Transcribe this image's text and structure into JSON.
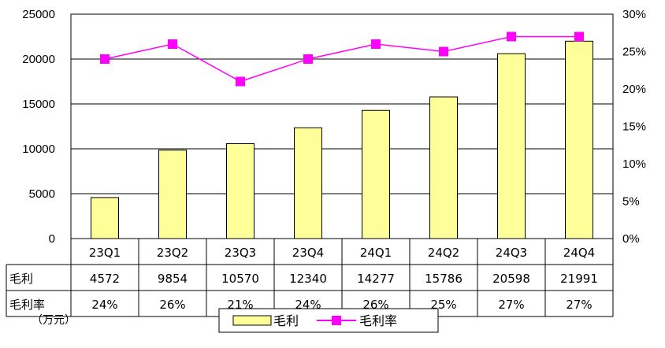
{
  "chart_data": {
    "type": "bar",
    "categories": [
      "23Q1",
      "23Q2",
      "23Q3",
      "23Q4",
      "24Q1",
      "24Q2",
      "24Q3",
      "24Q4"
    ],
    "series": [
      {
        "name": "毛利",
        "type": "bar",
        "axis": "left",
        "values": [
          4572,
          9854,
          10570,
          12340,
          14277,
          15786,
          20598,
          21991
        ],
        "color": "#FFFF99"
      },
      {
        "name": "毛利率",
        "type": "line",
        "axis": "right",
        "values": [
          24,
          26,
          21,
          24,
          26,
          25,
          27,
          27
        ],
        "color": "#FF00FF"
      }
    ],
    "y_left": {
      "ylim": [
        0,
        25000
      ],
      "ticks": [
        "0",
        "5000",
        "10000",
        "15000",
        "20000",
        "25000"
      ]
    },
    "y_right": {
      "ylim": [
        0,
        30
      ],
      "ticks": [
        "0%",
        "5%",
        "10%",
        "15%",
        "20%",
        "25%",
        "30%"
      ]
    },
    "grid": true,
    "legend_position": "bottom-center",
    "table": {
      "row_labels": [
        "毛利",
        "毛利率"
      ],
      "rows": [
        [
          "4572",
          "9854",
          "10570",
          "12340",
          "14277",
          "15786",
          "20598",
          "21991"
        ],
        [
          "24%",
          "26%",
          "21%",
          "24%",
          "26%",
          "25%",
          "27%",
          "27%"
        ]
      ]
    },
    "unit_label": "（万元）"
  }
}
